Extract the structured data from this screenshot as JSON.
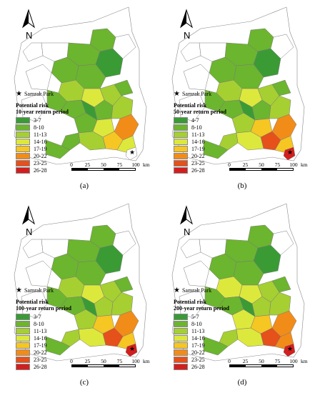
{
  "samrak_label": "Samrak Park",
  "north_label": "N",
  "scale": {
    "ticks": [
      "0",
      "25",
      "50",
      "75",
      "100"
    ],
    "unit": "km"
  },
  "legend_colors": [
    "#3a9b35",
    "#6cb52e",
    "#a6cf32",
    "#dde83c",
    "#f6c622",
    "#f28c18",
    "#e6501a",
    "#d41e1e"
  ],
  "panels": [
    {
      "caption": "(a)",
      "legend_title_1": "Potential risk",
      "legend_title_2": "10-year return period",
      "classes": [
        "3-7",
        "8-10",
        "11-13",
        "14-16",
        "17-19",
        "20-22",
        "23-25",
        "26-28"
      ]
    },
    {
      "caption": "(b)",
      "legend_title_1": "Potential risk",
      "legend_title_2": "50-year return period",
      "classes": [
        "4-7",
        "8-10",
        "11-13",
        "14-16",
        "17-19",
        "20-22",
        "23-25",
        "26-28"
      ]
    },
    {
      "caption": "(c)",
      "legend_title_1": "Potential risk",
      "legend_title_2": "100-year return period",
      "classes": [
        "3-7",
        "8-10",
        "11-13",
        "14-16",
        "17-19",
        "20-22",
        "23-25",
        "26-28"
      ]
    },
    {
      "caption": "(d)",
      "legend_title_1": "Potential risk",
      "legend_title_2": "200-year return period",
      "classes": [
        "5-7",
        "8-10",
        "11-13",
        "14-16",
        "17-19",
        "20-22",
        "23-25",
        "26-28"
      ]
    }
  ]
}
